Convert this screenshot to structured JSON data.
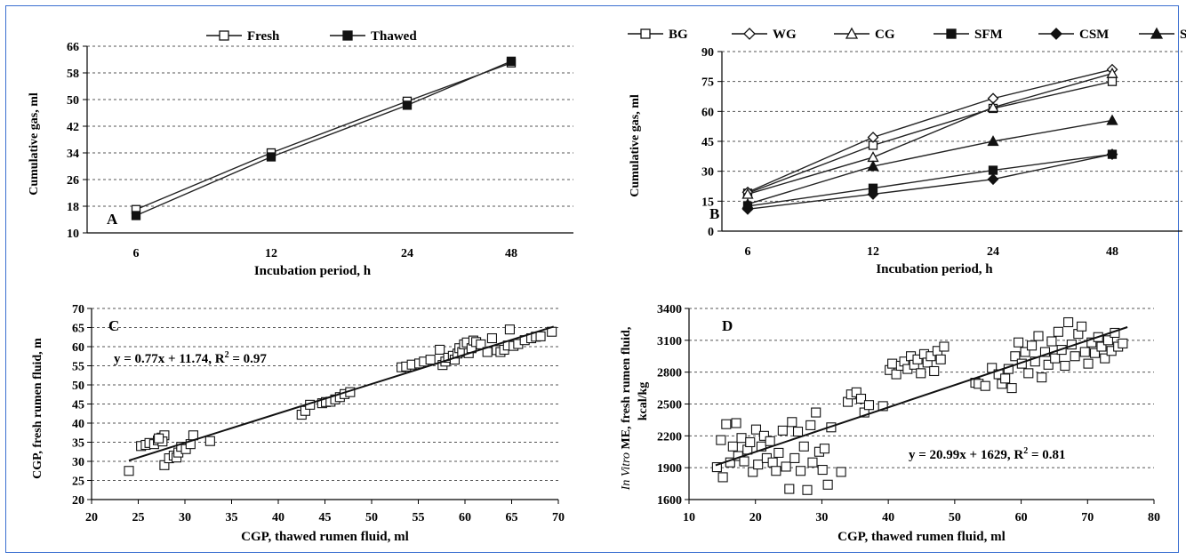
{
  "chart_data": [
    {
      "panel": "A",
      "type": "line",
      "categories": [
        "6",
        "12",
        "24",
        "48"
      ],
      "series": [
        {
          "name": "Fresh",
          "values": [
            17,
            34,
            49.5,
            61
          ],
          "marker": "square-open"
        },
        {
          "name": "Thawed",
          "values": [
            15.2,
            32.8,
            48.3,
            61.5
          ],
          "marker": "square-filled"
        }
      ],
      "xlabel": "Incubation period, h",
      "ylabel": "Cumulative gas, ml",
      "ylim": [
        10,
        66
      ],
      "yticks": [
        10,
        18,
        26,
        34,
        42,
        50,
        58,
        66
      ],
      "grid": "horizontal dashed",
      "legend": "top"
    },
    {
      "panel": "B",
      "type": "line",
      "categories": [
        "6",
        "12",
        "24",
        "48"
      ],
      "series": [
        {
          "name": "BG",
          "values": [
            19,
            43,
            61.5,
            75
          ],
          "marker": "square-open"
        },
        {
          "name": "WG",
          "values": [
            19.5,
            47,
            66.5,
            81
          ],
          "marker": "diamond-open"
        },
        {
          "name": "CG",
          "values": [
            18.5,
            37,
            62,
            79
          ],
          "marker": "triangle-open"
        },
        {
          "name": "SFM",
          "values": [
            12.5,
            21.5,
            30.5,
            38.5
          ],
          "marker": "square-filled"
        },
        {
          "name": "CSM",
          "values": [
            11,
            18.5,
            26,
            38.5
          ],
          "marker": "diamond-filled"
        },
        {
          "name": "SBM",
          "values": [
            13.5,
            32.5,
            45,
            55.5
          ],
          "marker": "triangle-filled"
        }
      ],
      "xlabel": "Incubation period, h",
      "ylabel": "Cumulative gas, ml",
      "ylim": [
        0,
        90
      ],
      "yticks": [
        0,
        15,
        30,
        45,
        60,
        75,
        90
      ],
      "grid": "horizontal dashed",
      "legend": "top"
    },
    {
      "panel": "C",
      "type": "scatter",
      "xlabel": "CGP, thawed rumen fluid, ml",
      "ylabel": "CGP, fresh rumen fluid, m",
      "xlim": [
        20,
        70
      ],
      "ylim": [
        20,
        70
      ],
      "xticks": [
        20,
        25,
        30,
        35,
        40,
        45,
        50,
        55,
        60,
        65,
        70
      ],
      "yticks": [
        20,
        25,
        30,
        35,
        40,
        45,
        50,
        55,
        60,
        65,
        70
      ],
      "grid": "horizontal dashed",
      "trendline": {
        "slope": 0.77,
        "intercept": 11.74,
        "x_range": [
          24,
          69.5
        ]
      },
      "equation": "y = 0.77x + 11.74, R",
      "r2": " = 0.97",
      "points": [
        [
          24,
          27.5
        ],
        [
          25.3,
          34
        ],
        [
          25.8,
          34.3
        ],
        [
          26.2,
          34.8
        ],
        [
          26.7,
          34.5
        ],
        [
          27.1,
          35.5
        ],
        [
          27.5,
          36.2
        ],
        [
          27.8,
          36.8
        ],
        [
          27.6,
          35.2
        ],
        [
          27.2,
          36
        ],
        [
          27.8,
          29
        ],
        [
          28.3,
          30.8
        ],
        [
          28.8,
          31.5
        ],
        [
          29.1,
          31
        ],
        [
          29.3,
          32.3
        ],
        [
          29.6,
          33.8
        ],
        [
          30.1,
          33.2
        ],
        [
          30.6,
          34.5
        ],
        [
          30.9,
          36.8
        ],
        [
          32.7,
          35.3
        ],
        [
          42.5,
          42.2
        ],
        [
          42.9,
          43.2
        ],
        [
          43.4,
          44.8
        ],
        [
          44.7,
          45.2
        ],
        [
          45.1,
          45.5
        ],
        [
          45.6,
          45.6
        ],
        [
          46.1,
          46.2
        ],
        [
          46.6,
          46.8
        ],
        [
          47.1,
          47.6
        ],
        [
          47.7,
          48.1
        ],
        [
          53.2,
          54.6
        ],
        [
          53.7,
          54.8
        ],
        [
          54.3,
          55.3
        ],
        [
          55.1,
          55.6
        ],
        [
          55.6,
          56.1
        ],
        [
          56.3,
          56.6
        ],
        [
          57.3,
          59.2
        ],
        [
          57.6,
          55.2
        ],
        [
          57.9,
          56.1
        ],
        [
          58.2,
          57.1
        ],
        [
          58.7,
          57.6
        ],
        [
          58.9,
          56.6
        ],
        [
          59.2,
          58.2
        ],
        [
          59.4,
          59.6
        ],
        [
          59.7,
          58.6
        ],
        [
          59.9,
          60.6
        ],
        [
          60.2,
          61.1
        ],
        [
          60.4,
          58.3
        ],
        [
          60.7,
          59.6
        ],
        [
          60.9,
          61.6
        ],
        [
          61.2,
          61.2
        ],
        [
          61.7,
          60.6
        ],
        [
          62.4,
          58.6
        ],
        [
          62.9,
          62.2
        ],
        [
          63.4,
          59.1
        ],
        [
          63.8,
          58.6
        ],
        [
          64.2,
          59.2
        ],
        [
          64.6,
          60.3
        ],
        [
          64.8,
          64.5
        ],
        [
          65.2,
          60.2
        ],
        [
          65.7,
          60.7
        ],
        [
          66.4,
          61.7
        ],
        [
          67.1,
          62.2
        ],
        [
          67.6,
          62.6
        ],
        [
          68.1,
          62.7
        ],
        [
          69.3,
          63.9
        ]
      ],
      "label_text": "C"
    },
    {
      "panel": "D",
      "type": "scatter",
      "xlabel": "CGP, thawed rumen fluid, ml",
      "ylabel_italic": "In Vitro",
      "ylabel": " ME, fresh rumen fluid,",
      "ylabel2": "kcal/kg",
      "xlim": [
        10,
        80
      ],
      "ylim": [
        1600,
        3400
      ],
      "xticks": [
        10,
        20,
        30,
        40,
        50,
        60,
        70,
        80
      ],
      "yticks": [
        1600,
        1900,
        2200,
        2500,
        2800,
        3100,
        3400
      ],
      "grid": "horizontal dashed",
      "trendline": {
        "slope": 20.99,
        "intercept": 1629,
        "x_range": [
          14,
          76
        ]
      },
      "equation": "y = 20.99x + 1629, R",
      "r2": " = 0.81",
      "points": [
        [
          14.2,
          1905
        ],
        [
          14.8,
          2160
        ],
        [
          15.1,
          1810
        ],
        [
          15.6,
          2310
        ],
        [
          16.2,
          1950
        ],
        [
          16.6,
          2100
        ],
        [
          17.1,
          2320
        ],
        [
          17.4,
          2010
        ],
        [
          17.9,
          2180
        ],
        [
          18.3,
          1960
        ],
        [
          18.8,
          2070
        ],
        [
          19.2,
          2140
        ],
        [
          19.6,
          1860
        ],
        [
          20.1,
          2260
        ],
        [
          20.4,
          1930
        ],
        [
          20.9,
          2100
        ],
        [
          21.3,
          2200
        ],
        [
          21.7,
          1990
        ],
        [
          22.2,
          2150
        ],
        [
          22.6,
          1950
        ],
        [
          23.1,
          1870
        ],
        [
          23.5,
          2040
        ],
        [
          24.1,
          2250
        ],
        [
          24.6,
          1910
        ],
        [
          25.1,
          1700
        ],
        [
          25.5,
          2330
        ],
        [
          25.9,
          1990
        ],
        [
          26.4,
          2240
        ],
        [
          26.8,
          1870
        ],
        [
          27.3,
          2100
        ],
        [
          27.8,
          1690
        ],
        [
          28.3,
          2300
        ],
        [
          28.6,
          1950
        ],
        [
          29.1,
          2420
        ],
        [
          29.6,
          2050
        ],
        [
          30.1,
          1880
        ],
        [
          30.4,
          2080
        ],
        [
          30.9,
          1740
        ],
        [
          31.4,
          2280
        ],
        [
          32.9,
          1860
        ],
        [
          33.9,
          2520
        ],
        [
          34.4,
          2590
        ],
        [
          35.2,
          2610
        ],
        [
          35.9,
          2550
        ],
        [
          36.4,
          2420
        ],
        [
          37.1,
          2490
        ],
        [
          39.2,
          2480
        ],
        [
          40.2,
          2820
        ],
        [
          40.6,
          2880
        ],
        [
          41.2,
          2780
        ],
        [
          41.9,
          2860
        ],
        [
          42.4,
          2900
        ],
        [
          42.9,
          2830
        ],
        [
          43.4,
          2950
        ],
        [
          43.9,
          2870
        ],
        [
          44.4,
          2920
        ],
        [
          44.9,
          2790
        ],
        [
          45.4,
          2970
        ],
        [
          45.9,
          2890
        ],
        [
          46.4,
          2950
        ],
        [
          46.9,
          2810
        ],
        [
          47.4,
          3000
        ],
        [
          47.9,
          2920
        ],
        [
          48.4,
          3040
        ],
        [
          53.1,
          2700
        ],
        [
          53.6,
          2690
        ],
        [
          54.6,
          2670
        ],
        [
          55.6,
          2840
        ],
        [
          56.6,
          2780
        ],
        [
          57.1,
          2690
        ],
        [
          57.6,
          2740
        ],
        [
          58.1,
          2830
        ],
        [
          58.6,
          2650
        ],
        [
          59.1,
          2950
        ],
        [
          59.6,
          3080
        ],
        [
          60.1,
          2880
        ],
        [
          60.6,
          2990
        ],
        [
          61.1,
          2790
        ],
        [
          61.6,
          3050
        ],
        [
          62.1,
          2900
        ],
        [
          62.6,
          3140
        ],
        [
          63.1,
          2750
        ],
        [
          63.6,
          2990
        ],
        [
          64.1,
          2870
        ],
        [
          64.6,
          3090
        ],
        [
          65.1,
          2930
        ],
        [
          65.6,
          3180
        ],
        [
          66.1,
          3010
        ],
        [
          66.6,
          2860
        ],
        [
          67.1,
          3270
        ],
        [
          67.6,
          3060
        ],
        [
          68.1,
          2950
        ],
        [
          68.6,
          3160
        ],
        [
          69.1,
          3230
        ],
        [
          69.6,
          2990
        ],
        [
          70.1,
          2880
        ],
        [
          70.6,
          3080
        ],
        [
          71.1,
          2980
        ],
        [
          71.6,
          3130
        ],
        [
          72.1,
          3040
        ],
        [
          72.6,
          2930
        ],
        [
          73.1,
          3100
        ],
        [
          73.6,
          3000
        ],
        [
          74.1,
          3170
        ],
        [
          74.6,
          3040
        ],
        [
          75.3,
          3070
        ]
      ],
      "label_text": "D"
    }
  ]
}
